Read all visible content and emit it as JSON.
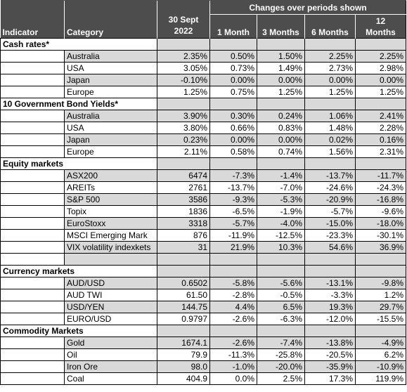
{
  "header": {
    "indicator": "Indicator",
    "category": "Category",
    "date_line1": "30 Sept",
    "date_line2": "2022",
    "changes": "Changes over periods shown",
    "p1": "1 Month",
    "p3": "3 Months",
    "p6": "6 Months",
    "p12_line1": "12",
    "p12_line2": "Months"
  },
  "sections": [
    {
      "title": "Cash rates*",
      "rows": [
        {
          "name": "Australia",
          "level": "2.35%",
          "m1": "0.50%",
          "m3": "1.50%",
          "m6": "2.25%",
          "m12": "2.25%"
        },
        {
          "name": "USA",
          "level": "3.05%",
          "m1": "0.73%",
          "m3": "1.49%",
          "m6": "2.73%",
          "m12": "2.98%"
        },
        {
          "name": "Japan",
          "level": "-0.10%",
          "m1": "0.00%",
          "m3": "0.00%",
          "m6": "0.00%",
          "m12": "0.00%"
        },
        {
          "name": "Europe",
          "level": "1.25%",
          "m1": "0.75%",
          "m3": "1.25%",
          "m6": "1.25%",
          "m12": "1.25%"
        }
      ]
    },
    {
      "title": "10 Government Bond Yields*",
      "rows": [
        {
          "name": "Australia",
          "level": "3.90%",
          "m1": "0.30%",
          "m3": "0.24%",
          "m6": "1.06%",
          "m12": "2.41%"
        },
        {
          "name": "USA",
          "level": "3.80%",
          "m1": "0.66%",
          "m3": "0.83%",
          "m6": "1.48%",
          "m12": "2.28%"
        },
        {
          "name": "Japan",
          "level": "0.23%",
          "m1": "0.00%",
          "m3": "0.00%",
          "m6": "0.02%",
          "m12": "0.16%"
        },
        {
          "name": "Europe",
          "level": "2.11%",
          "m1": "0.58%",
          "m3": "0.74%",
          "m6": "1.56%",
          "m12": "2.31%"
        }
      ]
    },
    {
      "title": "Equity markets",
      "rows": [
        {
          "name": "ASX200",
          "level": "6474",
          "m1": "-7.3%",
          "m3": "-1.4%",
          "m6": "-13.7%",
          "m12": "-11.7%"
        },
        {
          "name": "AREITs",
          "level": "2761",
          "m1": "-13.7%",
          "m3": "-7.0%",
          "m6": "-24.6%",
          "m12": "-24.3%"
        },
        {
          "name": "S&P 500",
          "level": "3586",
          "m1": "-9.3%",
          "m3": "-5.3%",
          "m6": "-20.9%",
          "m12": "-16.8%"
        },
        {
          "name": "Topix",
          "level": "1836",
          "m1": "-6.5%",
          "m3": "-1.9%",
          "m6": "-5.7%",
          "m12": "-9.6%"
        },
        {
          "name": "EuroStoxx",
          "level": "3318",
          "m1": "-5.7%",
          "m3": "-4.0%",
          "m6": "-15.0%",
          "m12": "-18.0%"
        },
        {
          "name": "MSCI Emerging Mark",
          "level": "876",
          "m1": "-11.9%",
          "m3": "-12.5%",
          "m6": "-23.3%",
          "m12": "-30.1%"
        },
        {
          "name": "VIX volatility indexkets",
          "level": "31",
          "m1": "21.9%",
          "m3": "10.3%",
          "m6": "54.6%",
          "m12": "36.9%"
        }
      ]
    },
    {
      "title": "Currency markets",
      "rows": [
        {
          "name": "AUD/USD",
          "level": "0.6502",
          "m1": "-5.8%",
          "m3": "-5.6%",
          "m6": "-13.1%",
          "m12": "-9.8%"
        },
        {
          "name": "AUD TWI",
          "level": "61.50",
          "m1": "-2.8%",
          "m3": "-0.5%",
          "m6": "-3.3%",
          "m12": "1.2%"
        },
        {
          "name": "USD/YEN",
          "level": "144.75",
          "m1": "4.4%",
          "m3": "6.5%",
          "m6": "19.3%",
          "m12": "29.7%"
        },
        {
          "name": "EURO/USD",
          "level": "0.9797",
          "m1": "-2.6%",
          "m3": "-6.3%",
          "m6": "-12.0%",
          "m12": "-15.5%"
        }
      ]
    },
    {
      "title": "Commodity Markets",
      "rows": [
        {
          "name": "Gold",
          "level": "1674.1",
          "m1": "-2.6%",
          "m3": "-7.4%",
          "m6": "-13.8%",
          "m12": "-4.9%"
        },
        {
          "name": "Oil",
          "level": "79.9",
          "m1": "-11.3%",
          "m3": "-25.8%",
          "m6": "-20.5%",
          "m12": "6.2%"
        },
        {
          "name": "Iron Ore",
          "level": "98.0",
          "m1": "-1.0%",
          "m3": "-20.0%",
          "m6": "-35.9%",
          "m12": "-10.9%"
        },
        {
          "name": "Coal",
          "level": "404.9",
          "m1": "0.0%",
          "m3": "2.5%",
          "m6": "17.3%",
          "m12": "119.9%"
        }
      ]
    }
  ]
}
